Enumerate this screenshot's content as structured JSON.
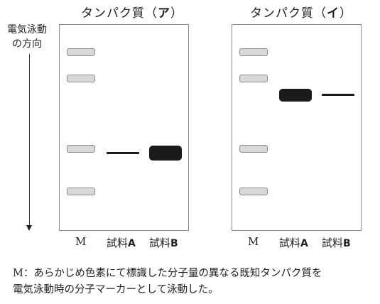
{
  "panels": [
    {
      "title_prefix": "タンパク質（",
      "title_letter": "ア",
      "title_suffix": "）",
      "lanes": [
        {
          "prefix": "",
          "letter": "M"
        },
        {
          "prefix": "試料",
          "letter": "A"
        },
        {
          "prefix": "試料",
          "letter": "B"
        }
      ]
    },
    {
      "title_prefix": "タンパク質（",
      "title_letter": "イ",
      "title_suffix": "）",
      "lanes": [
        {
          "prefix": "",
          "letter": "M"
        },
        {
          "prefix": "試料",
          "letter": "A"
        },
        {
          "prefix": "試料",
          "letter": "B"
        }
      ]
    }
  ],
  "side_label": {
    "line1": "電気泳動",
    "line2": "の方向"
  },
  "footnote": {
    "line1": "M：あらかじめ色素にて標識した分子量の異なる既知タンパク質を",
    "line2": "電気泳動時の分子マーカーとして泳動した。"
  }
}
